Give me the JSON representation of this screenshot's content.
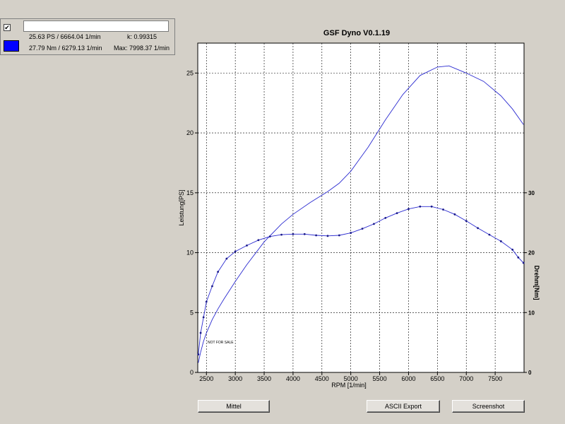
{
  "legend": {
    "checkbox_mark": "✔",
    "name_value": "",
    "swatch_color": "#0000ff",
    "power_info": "25.63 PS / 6664.04 1/min",
    "torque_info": "27.79 Nm / 6279.13 1/min",
    "k_info": "k: 0.99315",
    "max_info": "Max: 7998.37 1/min"
  },
  "buttons": {
    "mittel": "Mittel",
    "ascii_export": "ASCII Export",
    "screenshot": "Screenshot"
  },
  "watermark": "NOT FOR SALE",
  "colors": {
    "curve": "#2a2ad0",
    "background": "#d4d0c8",
    "plot": "#ffffff"
  },
  "chart_data": {
    "type": "line",
    "title": "GSF Dyno V0.1.19",
    "xlabel": "RPM [1/min]",
    "ylabel": "Leistung[PS]",
    "y2label": "Drehm[Nm]",
    "xlim": [
      2350,
      8000
    ],
    "ylim": [
      0,
      27.5
    ],
    "y2lim": [
      0,
      55
    ],
    "xticks": [
      2500,
      3000,
      3500,
      4000,
      4500,
      5000,
      5500,
      6000,
      6500,
      7000,
      7500
    ],
    "yticks": [
      0,
      5,
      10,
      15,
      20,
      25
    ],
    "y2ticks": [
      0,
      10,
      20,
      30
    ],
    "grid": true,
    "series": [
      {
        "axis": "left",
        "markers": false,
        "x": [
          2360,
          2400,
          2450,
          2500,
          2600,
          2700,
          2800,
          3000,
          3200,
          3500,
          3800,
          4000,
          4300,
          4600,
          4800,
          5000,
          5300,
          5600,
          5900,
          6200,
          6500,
          6700,
          7000,
          7300,
          7600,
          7800,
          7990
        ],
        "y": [
          0.8,
          1.7,
          2.6,
          3.3,
          4.4,
          5.3,
          6.1,
          7.6,
          9.0,
          10.9,
          12.4,
          13.2,
          14.2,
          15.1,
          15.8,
          16.8,
          18.8,
          21.1,
          23.2,
          24.8,
          25.5,
          25.6,
          25.0,
          24.3,
          23.1,
          22.0,
          20.7
        ]
      },
      {
        "axis": "right",
        "markers": true,
        "x": [
          2360,
          2400,
          2450,
          2500,
          2600,
          2700,
          2850,
          3000,
          3200,
          3400,
          3600,
          3800,
          4000,
          4200,
          4400,
          4600,
          4800,
          5000,
          5200,
          5400,
          5600,
          5800,
          6000,
          6200,
          6400,
          6600,
          6800,
          7000,
          7200,
          7400,
          7600,
          7800,
          7900,
          7990
        ],
        "y": [
          3.0,
          6.6,
          9.2,
          11.8,
          14.4,
          16.8,
          19.0,
          20.2,
          21.2,
          22.1,
          22.7,
          23.0,
          23.1,
          23.1,
          22.9,
          22.8,
          22.9,
          23.3,
          24.0,
          24.8,
          25.8,
          26.6,
          27.3,
          27.7,
          27.7,
          27.2,
          26.4,
          25.3,
          24.1,
          23.0,
          21.9,
          20.5,
          19.2,
          18.3
        ]
      }
    ]
  }
}
